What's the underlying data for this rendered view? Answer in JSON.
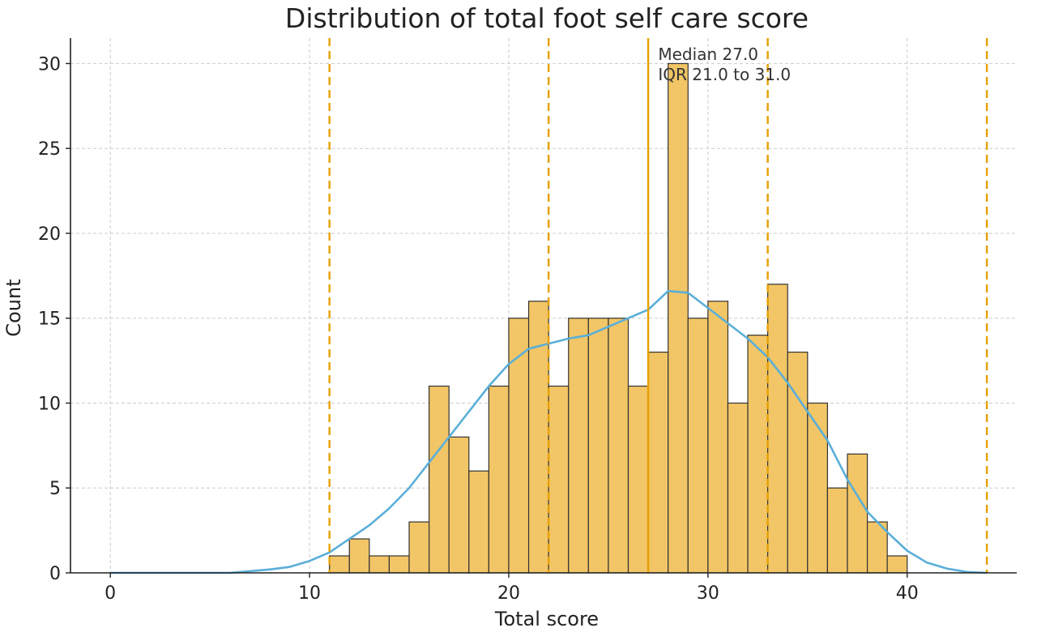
{
  "chart_data": {
    "type": "bar",
    "title": "Distribution of total foot self care score",
    "xlabel": "Total score",
    "ylabel": "Count",
    "xlim": [
      -2,
      45.5
    ],
    "ylim": [
      0,
      31.5
    ],
    "xticks": [
      0,
      10,
      20,
      30,
      40
    ],
    "yticks": [
      0,
      5,
      10,
      15,
      20,
      25,
      30
    ],
    "grid": true,
    "bin_width": 1,
    "bins": [
      {
        "start": 11,
        "count": 1
      },
      {
        "start": 12,
        "count": 2
      },
      {
        "start": 13,
        "count": 1
      },
      {
        "start": 14,
        "count": 1
      },
      {
        "start": 15,
        "count": 3
      },
      {
        "start": 16,
        "count": 11
      },
      {
        "start": 17,
        "count": 8
      },
      {
        "start": 18,
        "count": 6
      },
      {
        "start": 19,
        "count": 11
      },
      {
        "start": 20,
        "count": 15
      },
      {
        "start": 21,
        "count": 16
      },
      {
        "start": 22,
        "count": 11
      },
      {
        "start": 23,
        "count": 15
      },
      {
        "start": 24,
        "count": 15
      },
      {
        "start": 25,
        "count": 15
      },
      {
        "start": 26,
        "count": 11
      },
      {
        "start": 27,
        "count": 13
      },
      {
        "start": 28,
        "count": 30
      },
      {
        "start": 29,
        "count": 15
      },
      {
        "start": 30,
        "count": 16
      },
      {
        "start": 31,
        "count": 10
      },
      {
        "start": 32,
        "count": 14
      },
      {
        "start": 33,
        "count": 17
      },
      {
        "start": 34,
        "count": 13
      },
      {
        "start": 35,
        "count": 10
      },
      {
        "start": 36,
        "count": 5
      },
      {
        "start": 37,
        "count": 7
      },
      {
        "start": 38,
        "count": 3
      },
      {
        "start": 39,
        "count": 1
      }
    ],
    "kde": {
      "x": [
        0,
        6,
        8,
        9,
        10,
        11,
        12,
        13,
        14,
        15,
        16,
        17,
        18,
        19,
        20,
        21,
        22,
        23,
        24,
        25,
        26,
        27,
        28,
        29,
        30,
        31,
        32,
        33,
        34,
        35,
        36,
        37,
        38,
        39,
        40,
        41,
        42,
        43,
        44
      ],
      "y": [
        0,
        0,
        0.2,
        0.35,
        0.7,
        1.2,
        2.0,
        2.8,
        3.8,
        5.0,
        6.5,
        8.0,
        9.5,
        11.0,
        12.3,
        13.2,
        13.5,
        13.8,
        14.0,
        14.5,
        15.0,
        15.5,
        16.6,
        16.5,
        15.6,
        14.7,
        13.8,
        12.7,
        11.2,
        9.5,
        7.8,
        5.5,
        3.6,
        2.4,
        1.3,
        0.6,
        0.25,
        0.05,
        0
      ]
    },
    "vlines": [
      {
        "x": 11,
        "style": "dashed"
      },
      {
        "x": 22,
        "style": "dashed"
      },
      {
        "x": 27,
        "style": "solid"
      },
      {
        "x": 33,
        "style": "dashed"
      },
      {
        "x": 44,
        "style": "dashed"
      }
    ],
    "annotation": {
      "lines": [
        "Median 27.0",
        "IQR 21.0 to 31.0"
      ],
      "x": 27.5,
      "y": 30.5
    },
    "colors": {
      "bar_fill": "#F2C566",
      "bar_edge": "#333333",
      "kde_line": "#5AAFD9",
      "vline": "#E6A000"
    }
  }
}
